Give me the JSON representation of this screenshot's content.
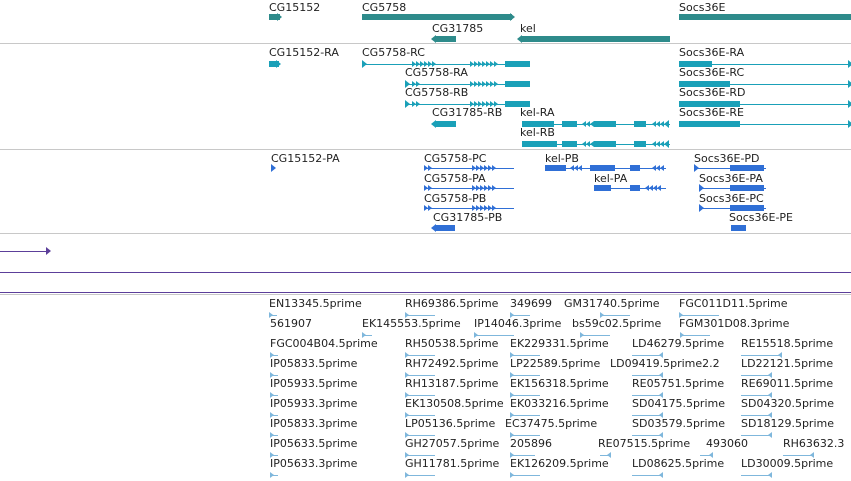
{
  "colors": {
    "gene": "#2e8b8b",
    "transcript": "#1aa0b8",
    "protein": "#2f6fd6",
    "purple": "#5c3f9a",
    "est": "#7fb7dc"
  },
  "genes": [
    {
      "label": "CG15152"
    },
    {
      "label": "CG5758"
    },
    {
      "label": "CG31785"
    },
    {
      "label": "kel"
    },
    {
      "label": "Socs36E"
    }
  ],
  "transcripts": [
    {
      "label": "CG15152-RA"
    },
    {
      "label": "CG5758-RC"
    },
    {
      "label": "CG5758-RA"
    },
    {
      "label": "CG5758-RB"
    },
    {
      "label": "CG31785-RB"
    },
    {
      "label": "kel-RA"
    },
    {
      "label": "kel-RB"
    },
    {
      "label": "Socs36E-RA"
    },
    {
      "label": "Socs36E-RC"
    },
    {
      "label": "Socs36E-RD"
    },
    {
      "label": "Socs36E-RE"
    }
  ],
  "proteins": [
    {
      "label": "CG15152-PA"
    },
    {
      "label": "CG5758-PC"
    },
    {
      "label": "kel-PB"
    },
    {
      "label": "Socs36E-PD"
    },
    {
      "label": "CG5758-PA"
    },
    {
      "label": "kel-PA"
    },
    {
      "label": "Socs36E-PA"
    },
    {
      "label": "CG5758-PB"
    },
    {
      "label": "Socs36E-PC"
    },
    {
      "label": "CG31785-PB"
    },
    {
      "label": "Socs36E-PE"
    }
  ],
  "ests": [
    {
      "label": "EN13345.5prime"
    },
    {
      "label": "RH69386.5prime"
    },
    {
      "label": "349699"
    },
    {
      "label": "GM31740.5prime"
    },
    {
      "label": "FGC011D11.5prime"
    },
    {
      "label": "561907"
    },
    {
      "label": "EK145553.5prime"
    },
    {
      "label": "IP14046.3prime"
    },
    {
      "label": "bs59c02.5prime"
    },
    {
      "label": "FGM301D08.3prime"
    },
    {
      "label": "FGC004B04.5prime"
    },
    {
      "label": "RH50538.5prime"
    },
    {
      "label": "EK229331.5prime"
    },
    {
      "label": "LD46279.5prime"
    },
    {
      "label": "RE15518.5prime"
    },
    {
      "label": "IP05833.5prime"
    },
    {
      "label": "RH72492.5prime"
    },
    {
      "label": "LP22589.5prime"
    },
    {
      "label": "LD09419.5prime2.2"
    },
    {
      "label": "LD22121.5prime"
    },
    {
      "label": "IP05933.5prime"
    },
    {
      "label": "RH13187.5prime"
    },
    {
      "label": "EK156318.5prime"
    },
    {
      "label": "RE05751.5prime"
    },
    {
      "label": "RE69011.5prime"
    },
    {
      "label": "IP05933.3prime"
    },
    {
      "label": "EK130508.5prime"
    },
    {
      "label": "EK033216.5prime"
    },
    {
      "label": "SD04175.5prime"
    },
    {
      "label": "SD04320.5prime"
    },
    {
      "label": "IP05833.3prime"
    },
    {
      "label": "LP05136.5prime"
    },
    {
      "label": "EC37475.5prime"
    },
    {
      "label": "SD03579.5prime"
    },
    {
      "label": "SD18129.5prime"
    },
    {
      "label": "IP05633.5prime"
    },
    {
      "label": "GH27057.5prime"
    },
    {
      "label": "205896"
    },
    {
      "label": "RE07515.5prime"
    },
    {
      "label": "493060"
    },
    {
      "label": "RH63632.3"
    },
    {
      "label": "IP05633.3prime"
    },
    {
      "label": "GH11781.5prime"
    },
    {
      "label": "EK126209.5prime"
    },
    {
      "label": "LD08625.5prime"
    },
    {
      "label": "LD30009.5prime"
    }
  ]
}
